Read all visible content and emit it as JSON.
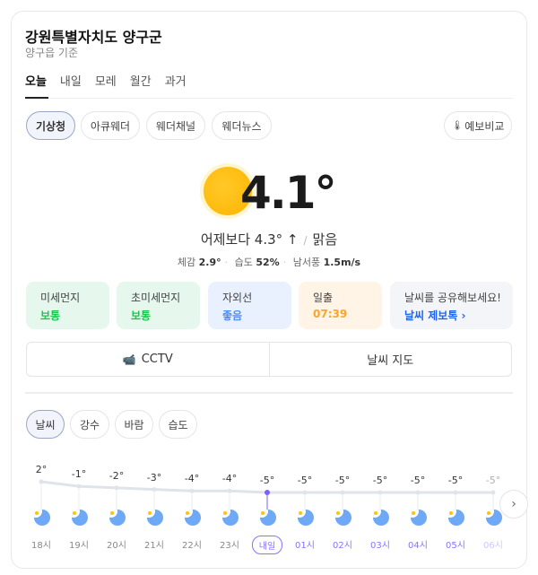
{
  "location": {
    "title": "강원특별자치도 양구군",
    "subtitle": "양구읍 기준"
  },
  "tabs": [
    "오늘",
    "내일",
    "모레",
    "월간",
    "과거"
  ],
  "sources": [
    "기상청",
    "아큐웨더",
    "웨더채널",
    "웨더뉴스"
  ],
  "compare_label": "예보비교",
  "current": {
    "temp": "4.1°",
    "compare": "어제보다 4.3° ↑",
    "sep": "/",
    "condition": "맑음",
    "feels_label": "체감",
    "feels": "2.9°",
    "humidity_label": "습도",
    "humidity": "52%",
    "wind_label": "남서풍",
    "wind": "1.5m/s"
  },
  "cards": [
    {
      "label": "미세먼지",
      "value": "보통",
      "bg": "#e6f7ee",
      "color": "#1ec44f"
    },
    {
      "label": "초미세먼지",
      "value": "보통",
      "bg": "#e6f7ee",
      "color": "#1ec44f"
    },
    {
      "label": "자외선",
      "value": "좋음",
      "bg": "#eaf1fe",
      "color": "#4c8dff"
    },
    {
      "label": "일출",
      "value": "07:39",
      "bg": "#fff4e6",
      "color": "#ffa425"
    },
    {
      "label": "날씨를 공유해보세요!",
      "value": "날씨 제보톡 ›",
      "bg": "#f4f5f8",
      "color": "#1f64f0"
    }
  ],
  "buttons": {
    "cctv": "CCTV",
    "map": "날씨 지도"
  },
  "chart_tabs": [
    "날씨",
    "강수",
    "바람",
    "습도"
  ],
  "chart_data": {
    "type": "line",
    "x": [
      "18시",
      "19시",
      "20시",
      "21시",
      "22시",
      "23시",
      "내일",
      "01시",
      "02시",
      "03시",
      "04시",
      "05시",
      "06시"
    ],
    "y": [
      2,
      -1,
      -2,
      -3,
      -4,
      -4,
      -5,
      -5,
      -5,
      -5,
      -5,
      -5,
      -5
    ],
    "labels": [
      "2°",
      "-1°",
      "-2°",
      "-3°",
      "-4°",
      "-4°",
      "-5°",
      "-5°",
      "-5°",
      "-5°",
      "-5°",
      "-5°",
      "-5°"
    ],
    "icons": "moon-clear-night",
    "highlight": "내일",
    "colors": {
      "line": "#dfe3ea",
      "highlight": "#7b61ff"
    }
  }
}
